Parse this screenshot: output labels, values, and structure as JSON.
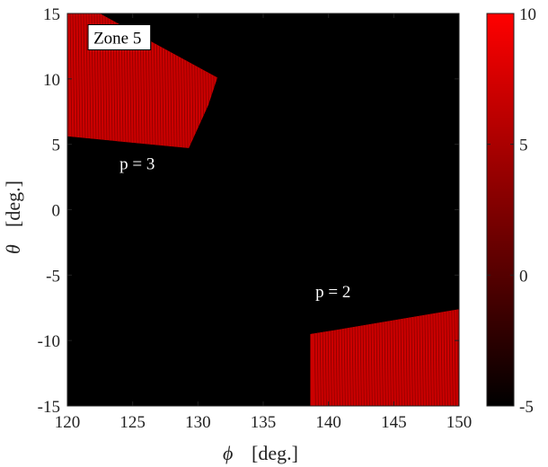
{
  "chart_data": {
    "type": "heatmap",
    "xlabel_symbol": "ϕ",
    "xlabel_unit": "[deg.]",
    "ylabel_symbol": "θ",
    "ylabel_unit": "[deg.]",
    "xlim": [
      120,
      150
    ],
    "ylim": [
      -15,
      15
    ],
    "x_ticks": [
      120,
      125,
      130,
      135,
      140,
      145,
      150
    ],
    "y_ticks": [
      15,
      10,
      5,
      0,
      -5,
      -10,
      -15
    ],
    "colorbar": {
      "min": -5,
      "max": 10,
      "ticks": [
        10,
        5,
        0,
        -5
      ],
      "colormap": [
        "#000000",
        "#ff0000"
      ]
    },
    "background_value": -5,
    "background_color": "#000000",
    "band_color": "#cc0000",
    "grid": false,
    "annotations": [
      {
        "text": "Zone 5",
        "x": 122,
        "y": 12.7,
        "boxed": true
      },
      {
        "text": "p = 3",
        "x": 124,
        "y": 3.1
      },
      {
        "text": "p = 2",
        "x": 139,
        "y": -6.7
      }
    ],
    "regions": [
      {
        "name": "p = 3",
        "value": 8,
        "outline": [
          [
            120,
            15
          ],
          [
            122.5,
            15
          ],
          [
            131.5,
            10.1
          ],
          [
            130.8,
            8
          ],
          [
            129.3,
            4.7
          ],
          [
            120,
            5.6
          ]
        ]
      },
      {
        "name": "p = 2",
        "value": 8,
        "outline": [
          [
            138.6,
            -9.5
          ],
          [
            140.5,
            -9.2
          ],
          [
            150,
            -7.6
          ],
          [
            150,
            -15
          ],
          [
            138.6,
            -15
          ]
        ]
      }
    ]
  }
}
